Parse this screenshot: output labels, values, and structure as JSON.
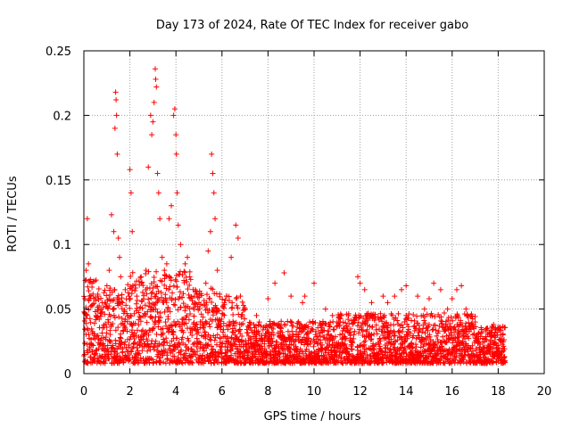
{
  "chart_data": {
    "type": "scatter",
    "title": "Day 173 of 2024, Rate Of TEC Index for receiver gabo",
    "xlabel": "GPS time / hours",
    "ylabel": "ROTI / TECUs",
    "xlim": [
      0,
      20
    ],
    "ylim": [
      0,
      0.25
    ],
    "xticks": [
      0,
      2,
      4,
      6,
      8,
      10,
      12,
      14,
      16,
      18,
      20
    ],
    "yticks": [
      0,
      0.05,
      0.1,
      0.15,
      0.2,
      0.25
    ],
    "ytick_labels": [
      "0",
      "0.05",
      "0.1",
      "0.15",
      "0.2",
      "0.25"
    ],
    "grid": true,
    "marker": "+",
    "color": "#ff0000",
    "data_range_hours": [
      0,
      18.3
    ],
    "series": [
      {
        "name": "ROTI",
        "x": [
          0.05,
          0.1,
          0.15,
          0.2,
          0.25,
          0.3,
          0.35,
          0.5,
          0.6,
          0.8,
          1.0,
          1.1,
          1.2,
          1.3,
          1.35,
          1.38,
          1.4,
          1.42,
          1.45,
          1.5,
          1.55,
          1.6,
          1.8,
          2.0,
          2.05,
          2.1,
          2.3,
          2.5,
          2.7,
          2.8,
          2.9,
          2.95,
          3.0,
          3.05,
          3.1,
          3.12,
          3.15,
          3.2,
          3.25,
          3.3,
          3.4,
          3.5,
          3.6,
          3.7,
          3.8,
          3.9,
          3.95,
          4.0,
          4.02,
          4.05,
          4.1,
          4.2,
          4.4,
          4.5,
          4.6,
          4.8,
          5.0,
          5.3,
          5.4,
          5.5,
          5.55,
          5.6,
          5.65,
          5.7,
          5.8,
          6.2,
          6.4,
          6.6,
          6.7,
          6.8,
          7.0,
          7.5,
          8.0,
          8.3,
          8.7,
          9.0,
          9.5,
          9.6,
          10.0,
          10.5,
          10.8,
          11.0,
          11.5,
          11.9,
          12.0,
          12.2,
          12.5,
          13.0,
          13.2,
          13.5,
          13.8,
          14.0,
          14.5,
          14.8,
          15.0,
          15.2,
          15.5,
          15.8,
          16.0,
          16.2,
          16.4,
          16.6,
          17.0,
          17.5,
          17.8,
          18.0,
          18.2
        ],
        "y": [
          0.058,
          0.08,
          0.12,
          0.085,
          0.06,
          0.052,
          0.07,
          0.048,
          0.06,
          0.055,
          0.068,
          0.08,
          0.123,
          0.11,
          0.19,
          0.218,
          0.212,
          0.2,
          0.17,
          0.105,
          0.09,
          0.075,
          0.065,
          0.158,
          0.14,
          0.11,
          0.06,
          0.07,
          0.08,
          0.16,
          0.2,
          0.185,
          0.195,
          0.21,
          0.236,
          0.228,
          0.222,
          0.155,
          0.14,
          0.12,
          0.09,
          0.08,
          0.085,
          0.12,
          0.13,
          0.2,
          0.205,
          0.185,
          0.17,
          0.14,
          0.115,
          0.1,
          0.085,
          0.09,
          0.075,
          0.06,
          0.055,
          0.07,
          0.095,
          0.11,
          0.17,
          0.155,
          0.14,
          0.12,
          0.08,
          0.06,
          0.09,
          0.115,
          0.105,
          0.06,
          0.05,
          0.045,
          0.058,
          0.07,
          0.078,
          0.06,
          0.055,
          0.06,
          0.07,
          0.05,
          0.045,
          0.04,
          0.045,
          0.075,
          0.07,
          0.065,
          0.055,
          0.06,
          0.055,
          0.06,
          0.065,
          0.068,
          0.06,
          0.05,
          0.058,
          0.07,
          0.065,
          0.05,
          0.058,
          0.065,
          0.068,
          0.05,
          0.04,
          0.035,
          0.038,
          0.035,
          0.03
        ]
      }
    ]
  }
}
